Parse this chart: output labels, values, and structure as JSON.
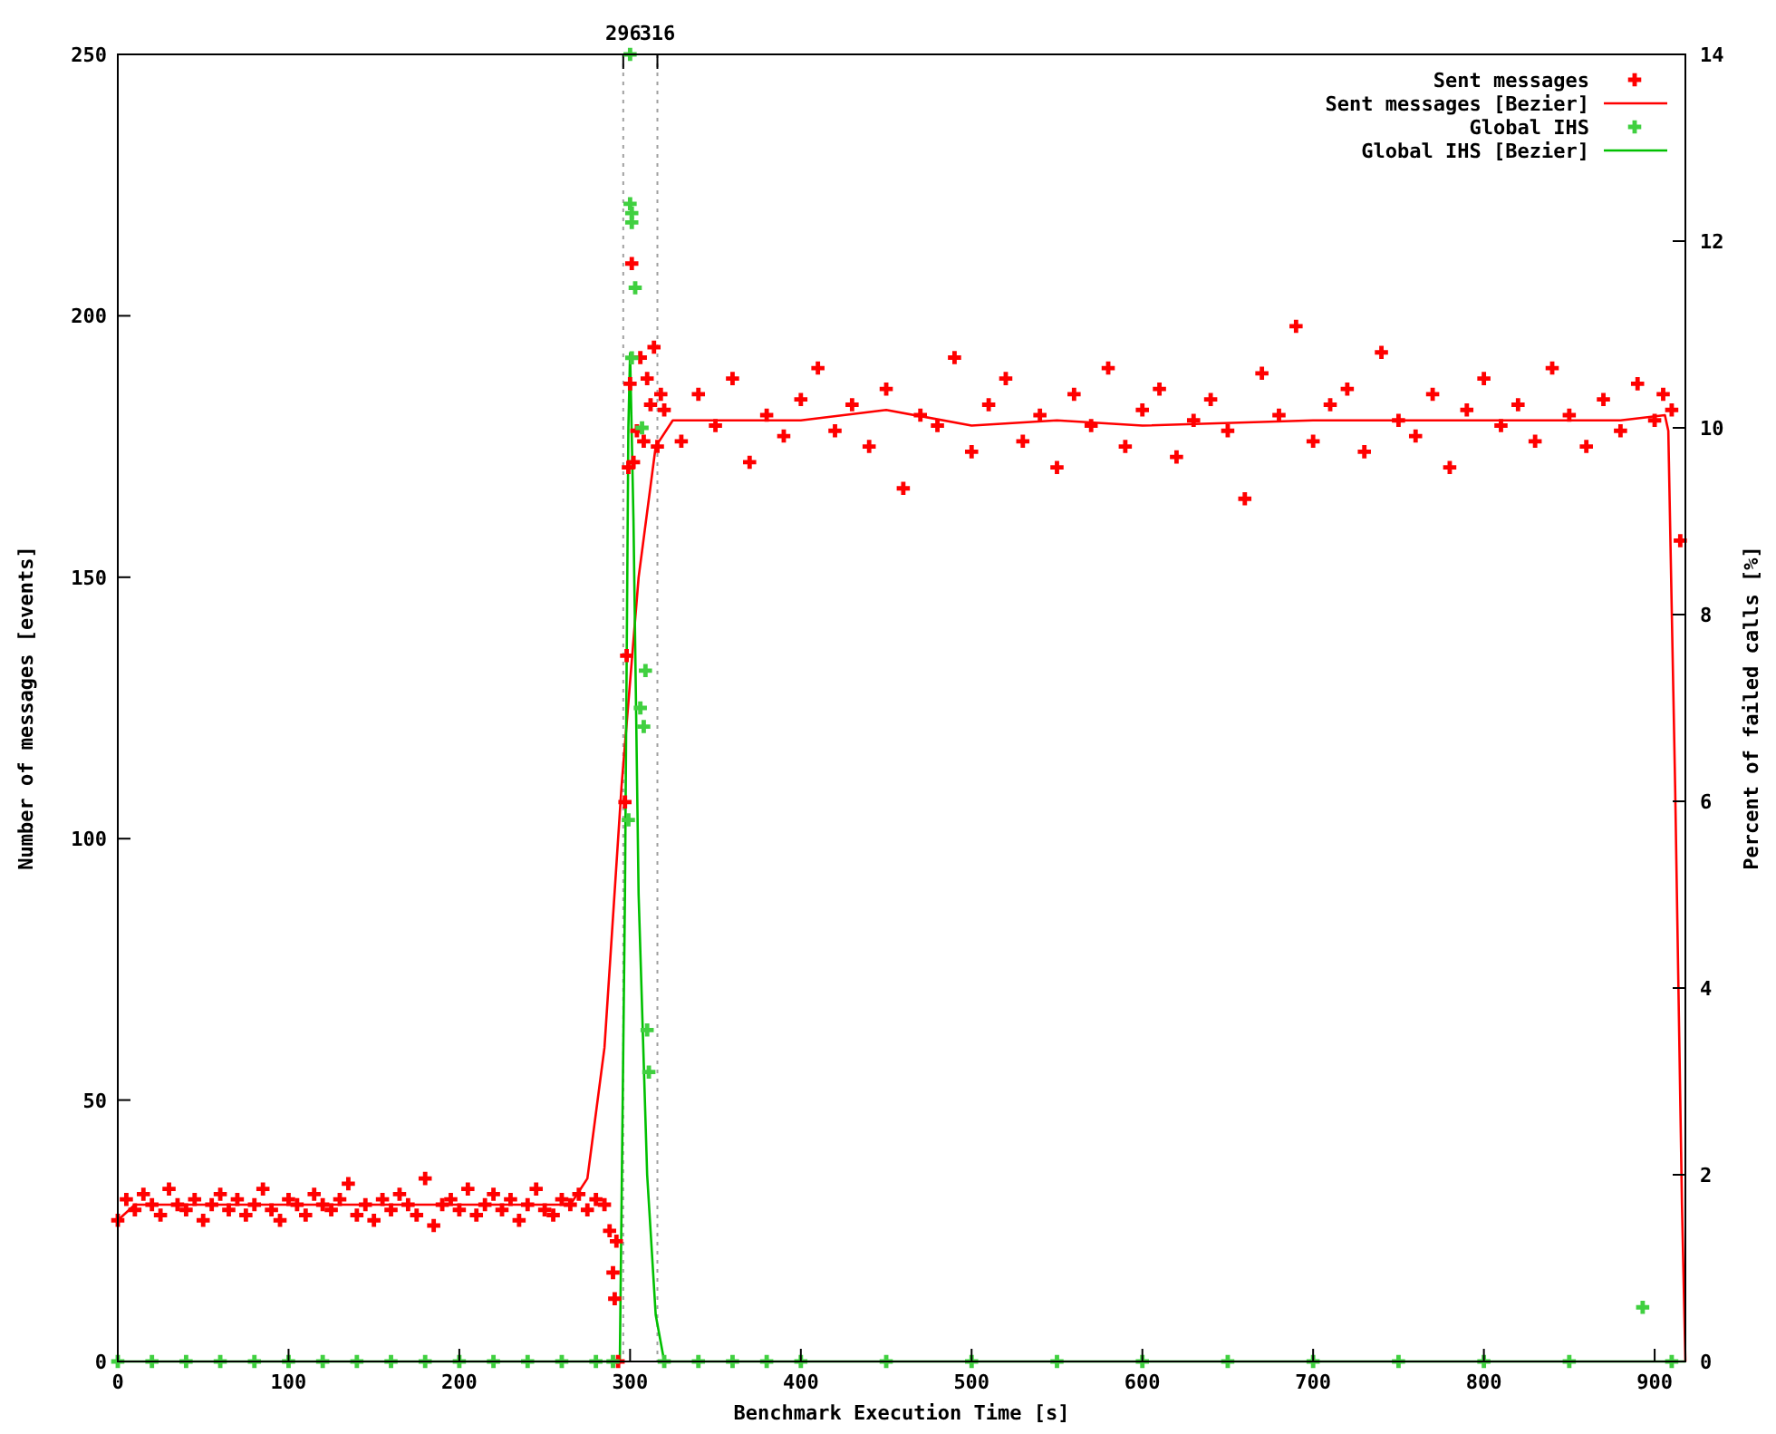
{
  "chart_data": {
    "type": "scatter",
    "xlabel": "Benchmark Execution Time [s]",
    "ylabel": "Number of messages [events]",
    "y2label": "Percent of failed calls [%]",
    "xlim": [
      0,
      918
    ],
    "xticks": [
      0,
      100,
      200,
      300,
      400,
      500,
      600,
      700,
      800,
      900
    ],
    "ylim": [
      0,
      250
    ],
    "yticks": [
      0,
      50,
      100,
      150,
      200,
      250
    ],
    "y2lim": [
      0,
      14
    ],
    "y2ticks": [
      0,
      2,
      4,
      6,
      8,
      10,
      12,
      14
    ],
    "legend": "top right",
    "grid": false,
    "ref_lines": [
      {
        "axis": "x",
        "value": 296,
        "label": "296",
        "color": "#a0a0a0",
        "line_style": "dotted"
      },
      {
        "axis": "x",
        "value": 316,
        "label": "316",
        "color": "#a0a0a0",
        "line_style": "dotted"
      }
    ],
    "series": [
      {
        "name": "Sent messages",
        "marker": "cross",
        "color": "#ff0000",
        "x": [
          0,
          5,
          10,
          15,
          20,
          25,
          30,
          35,
          40,
          45,
          50,
          55,
          60,
          65,
          70,
          75,
          80,
          85,
          90,
          95,
          100,
          105,
          110,
          115,
          120,
          125,
          130,
          135,
          140,
          145,
          150,
          155,
          160,
          165,
          170,
          175,
          180,
          185,
          190,
          195,
          200,
          205,
          210,
          215,
          220,
          225,
          230,
          235,
          240,
          245,
          250,
          255,
          260,
          265,
          270,
          275,
          280,
          285,
          288,
          290,
          291,
          292,
          293,
          297,
          298,
          299,
          300,
          301,
          302,
          304,
          306,
          308,
          310,
          312,
          314,
          316,
          318,
          320,
          330,
          340,
          350,
          360,
          370,
          380,
          390,
          400,
          410,
          420,
          430,
          440,
          450,
          460,
          470,
          480,
          490,
          500,
          510,
          520,
          530,
          540,
          550,
          560,
          570,
          580,
          590,
          600,
          610,
          620,
          630,
          640,
          650,
          660,
          670,
          680,
          690,
          700,
          710,
          720,
          730,
          740,
          750,
          760,
          770,
          780,
          790,
          800,
          810,
          820,
          830,
          840,
          850,
          860,
          870,
          880,
          890,
          900,
          905,
          910,
          915
        ],
        "values": [
          27,
          31,
          29,
          32,
          30,
          28,
          33,
          30,
          29,
          31,
          27,
          30,
          32,
          29,
          31,
          28,
          30,
          33,
          29,
          27,
          31,
          30,
          28,
          32,
          30,
          29,
          31,
          34,
          28,
          30,
          27,
          31,
          29,
          32,
          30,
          28,
          35,
          26,
          30,
          31,
          29,
          33,
          28,
          30,
          32,
          29,
          31,
          27,
          30,
          33,
          29,
          28,
          31,
          30,
          32,
          29,
          31,
          30,
          25,
          17,
          12,
          23,
          0,
          107,
          135,
          171,
          187,
          210,
          172,
          178,
          192,
          176,
          188,
          183,
          194,
          175,
          185,
          182,
          176,
          185,
          179,
          188,
          172,
          181,
          177,
          184,
          190,
          178,
          183,
          175,
          186,
          167,
          181,
          179,
          192,
          174,
          183,
          188,
          176,
          181,
          171,
          185,
          179,
          190,
          175,
          182,
          186,
          173,
          180,
          184,
          178,
          165,
          189,
          181,
          198,
          176,
          183,
          186,
          174,
          193,
          180,
          177,
          185,
          171,
          182,
          188,
          179,
          183,
          176,
          190,
          181,
          175,
          184,
          178,
          187,
          180,
          185,
          182,
          157
        ]
      },
      {
        "name": "Sent messages [Bezier]",
        "type": "line",
        "marker": "none",
        "color": "#ff0000",
        "x": [
          0,
          10,
          50,
          100,
          200,
          265,
          275,
          285,
          295,
          305,
          315,
          325,
          400,
          450,
          500,
          550,
          600,
          700,
          800,
          880,
          906,
          908,
          912,
          916,
          918
        ],
        "values": [
          27,
          30,
          30,
          30,
          30,
          30,
          35,
          60,
          110,
          150,
          175,
          180,
          180,
          182,
          179,
          180,
          179,
          180,
          180,
          180,
          181,
          178,
          110,
          30,
          0
        ]
      },
      {
        "name": "Global IHS",
        "type": "scatter",
        "marker": "cross",
        "axis": "y2",
        "color": "#40d040",
        "x": [
          0,
          20,
          40,
          60,
          80,
          100,
          120,
          140,
          160,
          180,
          200,
          220,
          240,
          260,
          280,
          290,
          299,
          300,
          300,
          301,
          301,
          303,
          301,
          307,
          309,
          306,
          308,
          310,
          311,
          320,
          340,
          360,
          380,
          400,
          450,
          500,
          550,
          600,
          650,
          700,
          750,
          800,
          850,
          893,
          910
        ],
        "values": [
          0,
          0,
          0,
          0,
          0,
          0,
          0,
          0,
          0,
          0,
          0,
          0,
          0,
          0,
          0,
          0,
          5.8,
          14.0,
          12.4,
          12.3,
          12.2,
          11.5,
          10.75,
          10.0,
          7.4,
          7.0,
          6.8,
          3.55,
          3.1,
          0,
          0,
          0,
          0,
          0,
          0,
          0,
          0,
          0,
          0,
          0,
          0,
          0,
          0,
          0.58,
          0
        ]
      },
      {
        "name": "Global IHS [Bezier]",
        "type": "line",
        "marker": "none",
        "axis": "y2",
        "color": "#00c000",
        "x": [
          0,
          294,
          297,
          299,
          300,
          302,
          305,
          310,
          315,
          320,
          918
        ],
        "values": [
          0,
          0,
          5,
          10,
          10.8,
          9,
          5,
          2,
          0.5,
          0,
          0
        ]
      }
    ]
  }
}
